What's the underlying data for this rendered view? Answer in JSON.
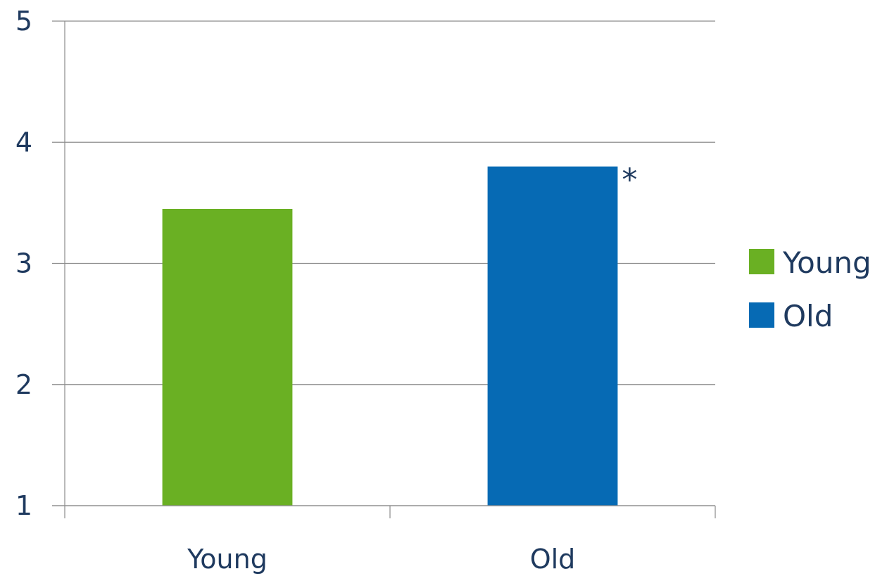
{
  "chart_data": {
    "type": "bar",
    "title": "",
    "xlabel": "",
    "ylabel": "",
    "categories": [
      "Young",
      "Old"
    ],
    "values": [
      3.45,
      3.8
    ],
    "colors": [
      "#6ab023",
      "#066ab4"
    ],
    "ylim": [
      1,
      5
    ],
    "yticks": [
      "1",
      "2",
      "3",
      "4",
      "5"
    ],
    "grid": true,
    "legend": {
      "placement": "right",
      "entries": [
        {
          "label": "Young",
          "color": "#6ab023"
        },
        {
          "label": "Old",
          "color": "#066ab4"
        }
      ]
    },
    "annotations": [
      {
        "text": "*",
        "category": "Old"
      }
    ]
  }
}
